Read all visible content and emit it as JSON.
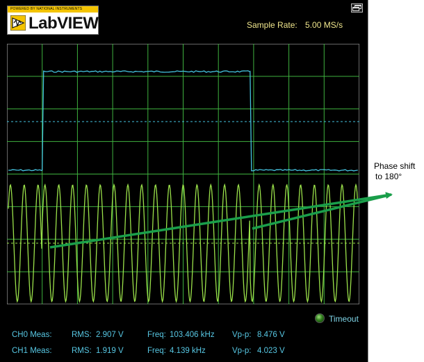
{
  "logo": {
    "top_text": "POWERED BY  NATIONAL INSTRUMENTS",
    "name": "LabVIEW"
  },
  "header": {
    "sample_rate_label": "Sample Rate:",
    "sample_rate_value": "5.00 MS/s"
  },
  "status": {
    "timeout_label": "Timeout",
    "led_color": "#2f7d1d"
  },
  "measurements": [
    {
      "channel": "CH0 Meas:",
      "rms_label": "RMS:",
      "rms_value": "2.907 V",
      "freq_label": "Freq:",
      "freq_value": "103.406 kHz",
      "vpp_label": "Vp-p:",
      "vpp_value": "8.476 V"
    },
    {
      "channel": "CH1 Meas:",
      "rms_label": "RMS:",
      "rms_value": "1.919 V",
      "freq_label": "Freq:",
      "freq_value": "4.139 kHz",
      "vpp_label": "Vp-p:",
      "vpp_value": "4.023 V"
    }
  ],
  "annotation": {
    "line1": "Phase shift",
    "line2": "to  180°"
  },
  "colors": {
    "background": "#000000",
    "grid": "#3fb23f",
    "square_wave": "#45c4e0",
    "sine_wave": "#9be24a",
    "arrow": "#1a9e4a",
    "text_yellow": "#f0e68c",
    "text_cyan": "#57c7e3"
  },
  "chart_data": {
    "type": "line",
    "title": "",
    "xlabel": "",
    "ylabel": "",
    "grid": true,
    "series": [
      {
        "kind": "square",
        "high_fraction_start": 0.1,
        "high_fraction_end": 0.69,
        "duty_note": ""
      },
      {
        "kind": "sine",
        "cycles": 25.5,
        "phase_shift_deg": 180
      }
    ]
  }
}
